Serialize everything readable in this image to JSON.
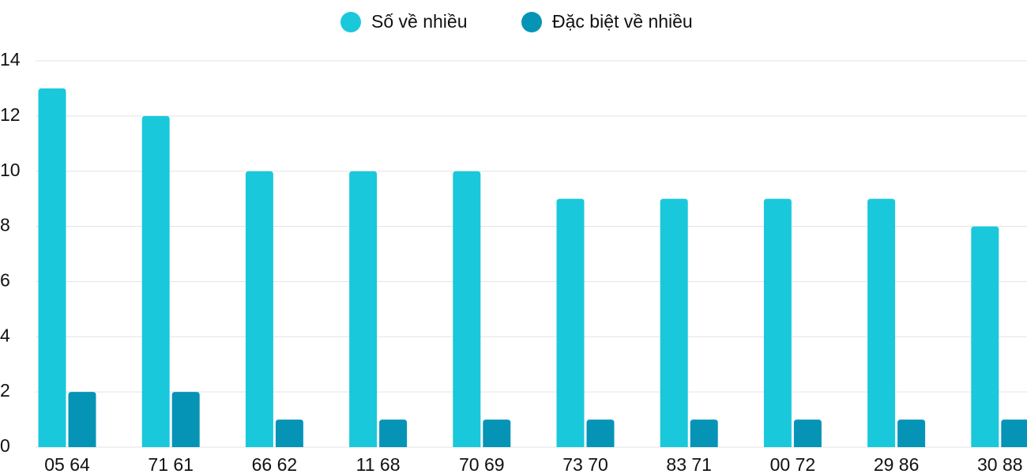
{
  "chart_data": {
    "type": "bar",
    "categories": [
      "05 64",
      "71 61",
      "66 62",
      "11 68",
      "70 69",
      "73 70",
      "83 71",
      "00 72",
      "29 86",
      "30 88"
    ],
    "series": [
      {
        "name": "Số về nhiều",
        "color": "#1ac8db",
        "values": [
          13,
          12,
          10,
          10,
          10,
          9,
          9,
          9,
          9,
          8
        ]
      },
      {
        "name": "Đặc biệt về nhiều",
        "color": "#0694b6",
        "values": [
          2,
          2,
          1,
          1,
          1,
          1,
          1,
          1,
          1,
          1
        ]
      }
    ],
    "ylim": [
      0,
      14
    ],
    "yticks": [
      0,
      2,
      4,
      6,
      8,
      10,
      12,
      14
    ],
    "grid": true,
    "legend": "top"
  }
}
